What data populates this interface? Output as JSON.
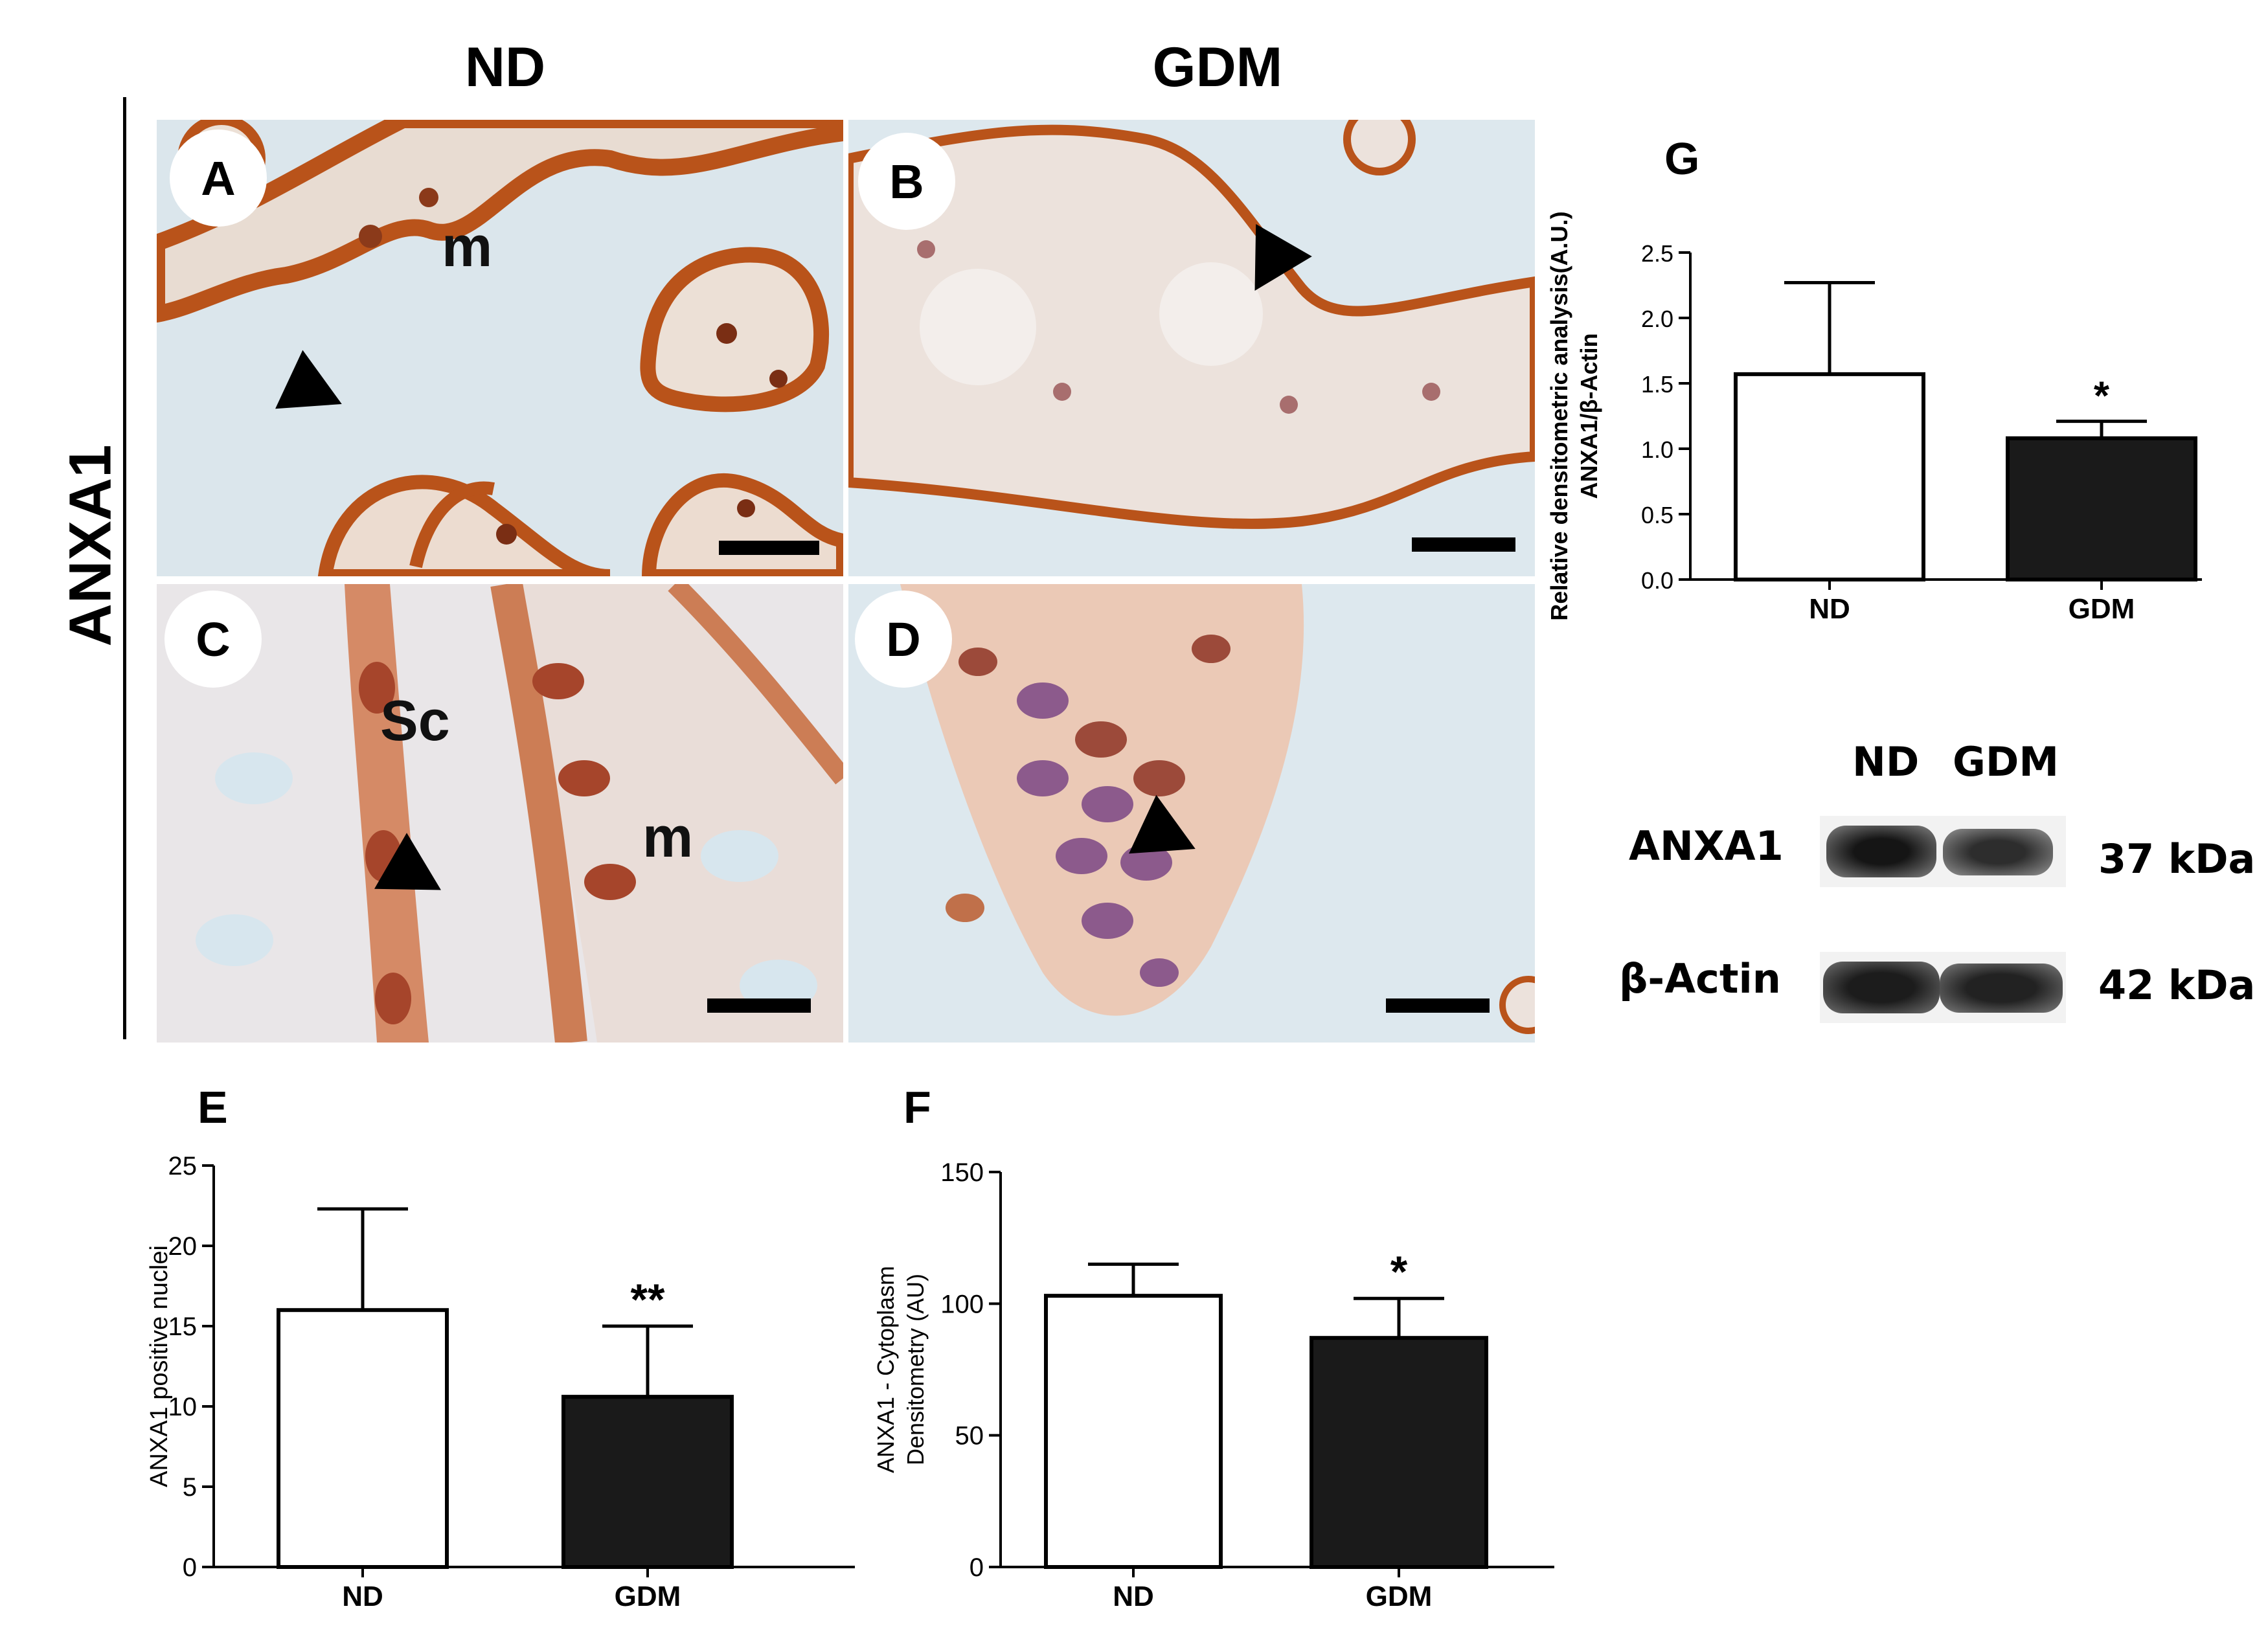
{
  "figure": {
    "col_nd": "ND",
    "col_gdm": "GDM",
    "row_label": "ANXA1",
    "panels": [
      {
        "letter": "A",
        "annotations": [
          "m"
        ]
      },
      {
        "letter": "B",
        "annotations": []
      },
      {
        "letter": "C",
        "annotations": [
          "Sc",
          "m"
        ]
      },
      {
        "letter": "D",
        "annotations": []
      }
    ],
    "plot_letters": {
      "E": "E",
      "F": "F",
      "G": "G"
    },
    "colors": {
      "nd_bar": "#ffffff",
      "gdm_bar": "#1a1a1a",
      "stain": "#b8561f",
      "background": "#dde8ee"
    }
  },
  "western_blot": {
    "headers": [
      "ND",
      "GDM"
    ],
    "rows": [
      {
        "label": "ANXA1",
        "size": "37 kDa"
      },
      {
        "label": "β-Actin",
        "size": "42 kDa"
      }
    ]
  },
  "chart_data": [
    {
      "id": "E",
      "type": "bar",
      "categories": [
        "ND",
        "GDM"
      ],
      "values": [
        16,
        10.6
      ],
      "errors": [
        6.3,
        4.4
      ],
      "significance": [
        "",
        "**"
      ],
      "ylabel": "ANXA1 positive nuclei",
      "ylim": [
        0,
        25
      ],
      "yticks": [
        0,
        5,
        10,
        15,
        20,
        25
      ]
    },
    {
      "id": "F",
      "type": "bar",
      "categories": [
        "ND",
        "GDM"
      ],
      "values": [
        103,
        87
      ],
      "errors": [
        12,
        15
      ],
      "significance": [
        "",
        "*"
      ],
      "ylabel_lines": [
        "ANXA1 - Cytoplasm",
        "Densitometry (AU)"
      ],
      "ylim": [
        0,
        150
      ],
      "yticks": [
        0,
        50,
        100,
        150
      ]
    },
    {
      "id": "G",
      "type": "bar",
      "categories": [
        "ND",
        "GDM"
      ],
      "values": [
        1.57,
        1.08
      ],
      "errors": [
        0.7,
        0.13
      ],
      "significance": [
        "",
        "*"
      ],
      "ylabel_lines": [
        "Relative densitometric analysis(A.U.)",
        "ANXA1/β-Actin"
      ],
      "ylim": [
        0,
        2.5
      ],
      "yticks": [
        "0.0",
        "0.5",
        "1.0",
        "1.5",
        "2.0",
        "2.5"
      ]
    }
  ]
}
